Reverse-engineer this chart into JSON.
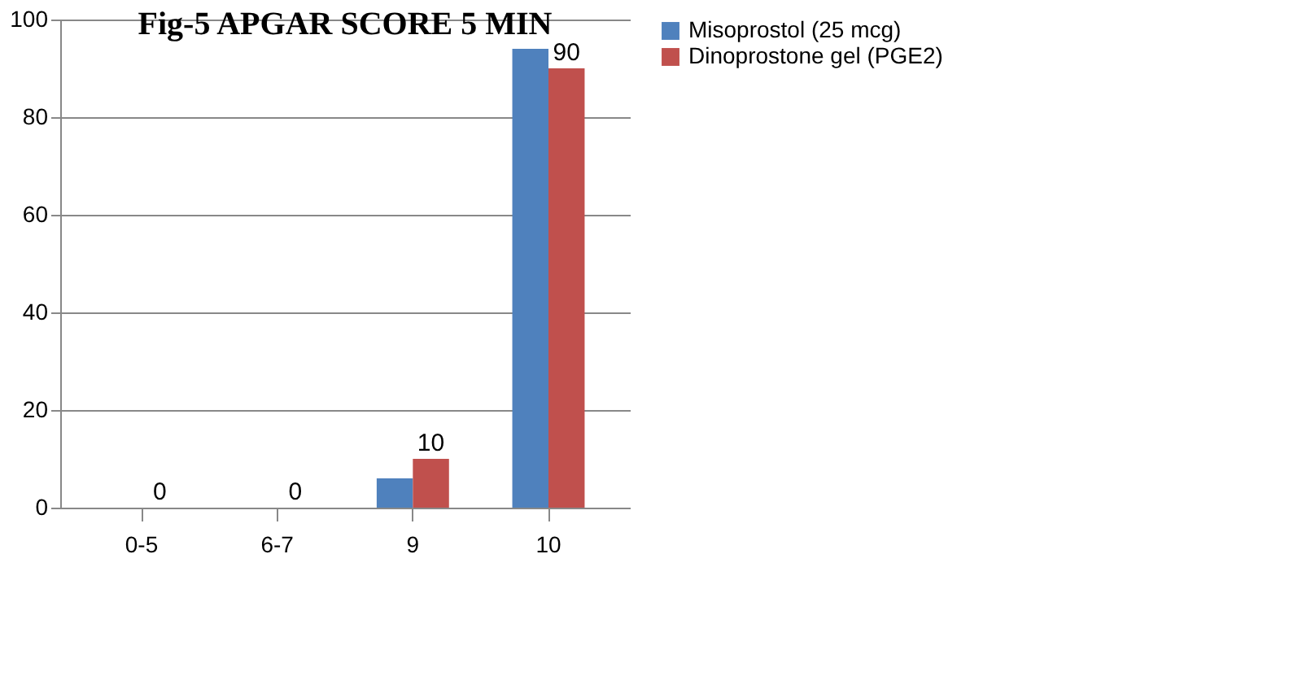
{
  "chart_data": {
    "type": "bar",
    "title": "Fig-5     APGAR SCORE 5 MIN",
    "categories": [
      "0-5",
      "6-7",
      "9",
      "10"
    ],
    "series": [
      {
        "name": "Misoprostol (25 mcg)",
        "color": "#4f81bd",
        "values": [
          0,
          0,
          6,
          94
        ]
      },
      {
        "name": "Dinoprostone gel (PGE2)",
        "color": "#c0504d",
        "values": [
          0,
          0,
          10,
          90
        ],
        "value_labels": [
          "0",
          "0",
          "10",
          "90"
        ]
      }
    ],
    "ylim": [
      0,
      100
    ],
    "yticks": [
      0,
      20,
      40,
      60,
      80,
      100
    ],
    "grid": "y",
    "legend": "right"
  }
}
